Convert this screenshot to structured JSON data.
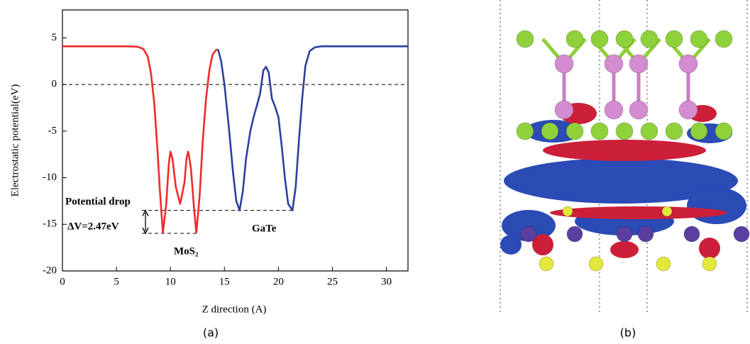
{
  "chart_data": {
    "type": "line",
    "x_label": "Z direction (A)",
    "y_label": "Electrostatic potential(eV)",
    "panel_a": "(a)",
    "panel_b": "(b)",
    "xlim": [
      0,
      32
    ],
    "ylim": [
      -20,
      8
    ],
    "xticks": [
      0,
      5,
      10,
      15,
      20,
      25,
      30
    ],
    "yticks": [
      -20,
      -15,
      -10,
      -5,
      0,
      5
    ],
    "reference_line": 0,
    "drop": {
      "from": -13.5,
      "to": -15.97,
      "title": "Potential drop",
      "label": "ΔV=2.47eV"
    },
    "annotations": [
      "MoS₂",
      "GaTe"
    ],
    "series": [
      {
        "name": "MoS₂",
        "color": "#ee2b2b",
        "x": [
          0,
          2,
          4,
          6,
          7,
          7.5,
          7.9,
          8.2,
          8.5,
          8.8,
          9.0,
          9.3,
          9.6,
          9.85,
          10.0,
          10.2,
          10.5,
          10.9,
          11.3,
          11.5,
          11.65,
          11.9,
          12.2,
          12.4,
          12.7,
          13.0,
          13.3,
          13.6,
          13.9,
          14.3
        ],
        "values": [
          4.1,
          4.1,
          4.1,
          4.1,
          4.05,
          3.8,
          3.0,
          1.2,
          -2,
          -7,
          -11,
          -15.9,
          -13,
          -8.5,
          -7.2,
          -8,
          -11,
          -12.8,
          -10.5,
          -7.8,
          -7.2,
          -9,
          -13.5,
          -15.9,
          -12,
          -6,
          -1.5,
          1.5,
          3.2,
          3.8
        ]
      },
      {
        "name": "GaTe",
        "color": "#2e3f9e",
        "x": [
          14.4,
          14.7,
          15.0,
          15.4,
          15.8,
          16.1,
          16.4,
          16.7,
          17.0,
          17.4,
          17.7,
          18.0,
          18.3,
          18.6,
          18.85,
          19.1,
          19.4,
          19.7,
          20.0,
          20.3,
          20.6,
          20.9,
          21.3,
          21.6,
          21.9,
          22.2,
          22.5,
          22.9,
          23.4,
          24,
          26,
          28,
          30,
          32
        ],
        "values": [
          3.8,
          2.5,
          0,
          -4.5,
          -9.5,
          -12.5,
          -13.5,
          -11.5,
          -8,
          -5,
          -3.5,
          -2.3,
          -1,
          1.5,
          1.9,
          1.3,
          -1.5,
          -2.4,
          -3.5,
          -6.5,
          -10,
          -12.8,
          -13.5,
          -11,
          -6,
          -1.5,
          2,
          3.6,
          4.0,
          4.1,
          4.1,
          4.1,
          4.1,
          4.1
        ]
      }
    ]
  }
}
